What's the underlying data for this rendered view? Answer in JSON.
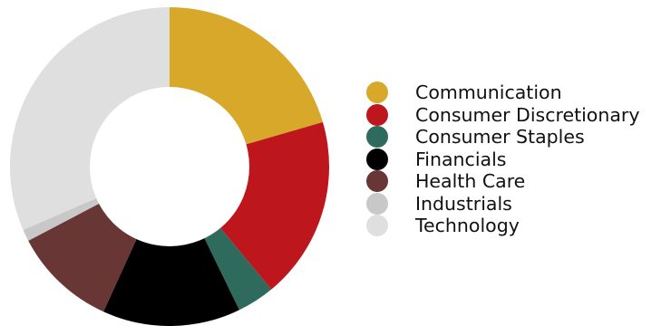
{
  "chart_data": {
    "type": "pie",
    "variant": "donut",
    "title": "",
    "legend_position": "right",
    "categories": [
      "Communication",
      "Consumer Discretionary",
      "Consumer Staples",
      "Financials",
      "Health Care",
      "Industrials",
      "Technology"
    ],
    "values": [
      20.5,
      18.5,
      3.8,
      14.0,
      10.5,
      1.2,
      31.5
    ],
    "colors": [
      "#D8A82B",
      "#BD161C",
      "#2F6B5D",
      "#000000",
      "#683635",
      "#C8C8C8",
      "#DFDFDF"
    ]
  }
}
